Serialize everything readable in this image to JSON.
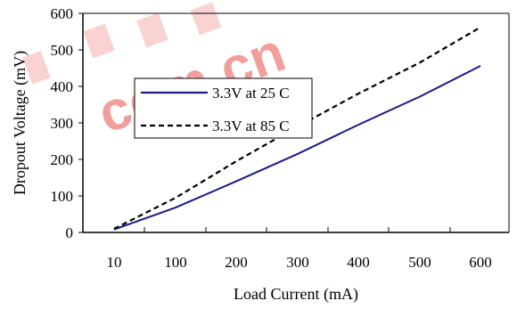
{
  "chart_data": {
    "type": "line",
    "xlabel": "Load Current (mA)",
    "ylabel": "Dropout Voltage (mV)",
    "x_categories": [
      "10",
      "100",
      "200",
      "300",
      "400",
      "500",
      "600"
    ],
    "y_ticks": [
      "0",
      "100",
      "200",
      "300",
      "400",
      "500",
      "600"
    ],
    "ylim": [
      0,
      600
    ],
    "grid": "vertical minor ticks only",
    "legend_position": "top-left inside plot",
    "series": [
      {
        "name": "3.3V at 25 C",
        "style": "solid",
        "color": "#1a1a8c",
        "points": [
          [
            10,
            8
          ],
          [
            100,
            68
          ],
          [
            200,
            140
          ],
          [
            300,
            215
          ],
          [
            400,
            295
          ],
          [
            500,
            372
          ],
          [
            600,
            456
          ]
        ]
      },
      {
        "name": "3.3V at 85 C",
        "style": "dashed",
        "color": "#000000",
        "points": [
          [
            10,
            10
          ],
          [
            100,
            95
          ],
          [
            200,
            195
          ],
          [
            300,
            290
          ],
          [
            400,
            380
          ],
          [
            500,
            465
          ],
          [
            600,
            562
          ]
        ]
      }
    ]
  },
  "watermark": {
    "text": "com.cn",
    "color": "#e8504a"
  }
}
